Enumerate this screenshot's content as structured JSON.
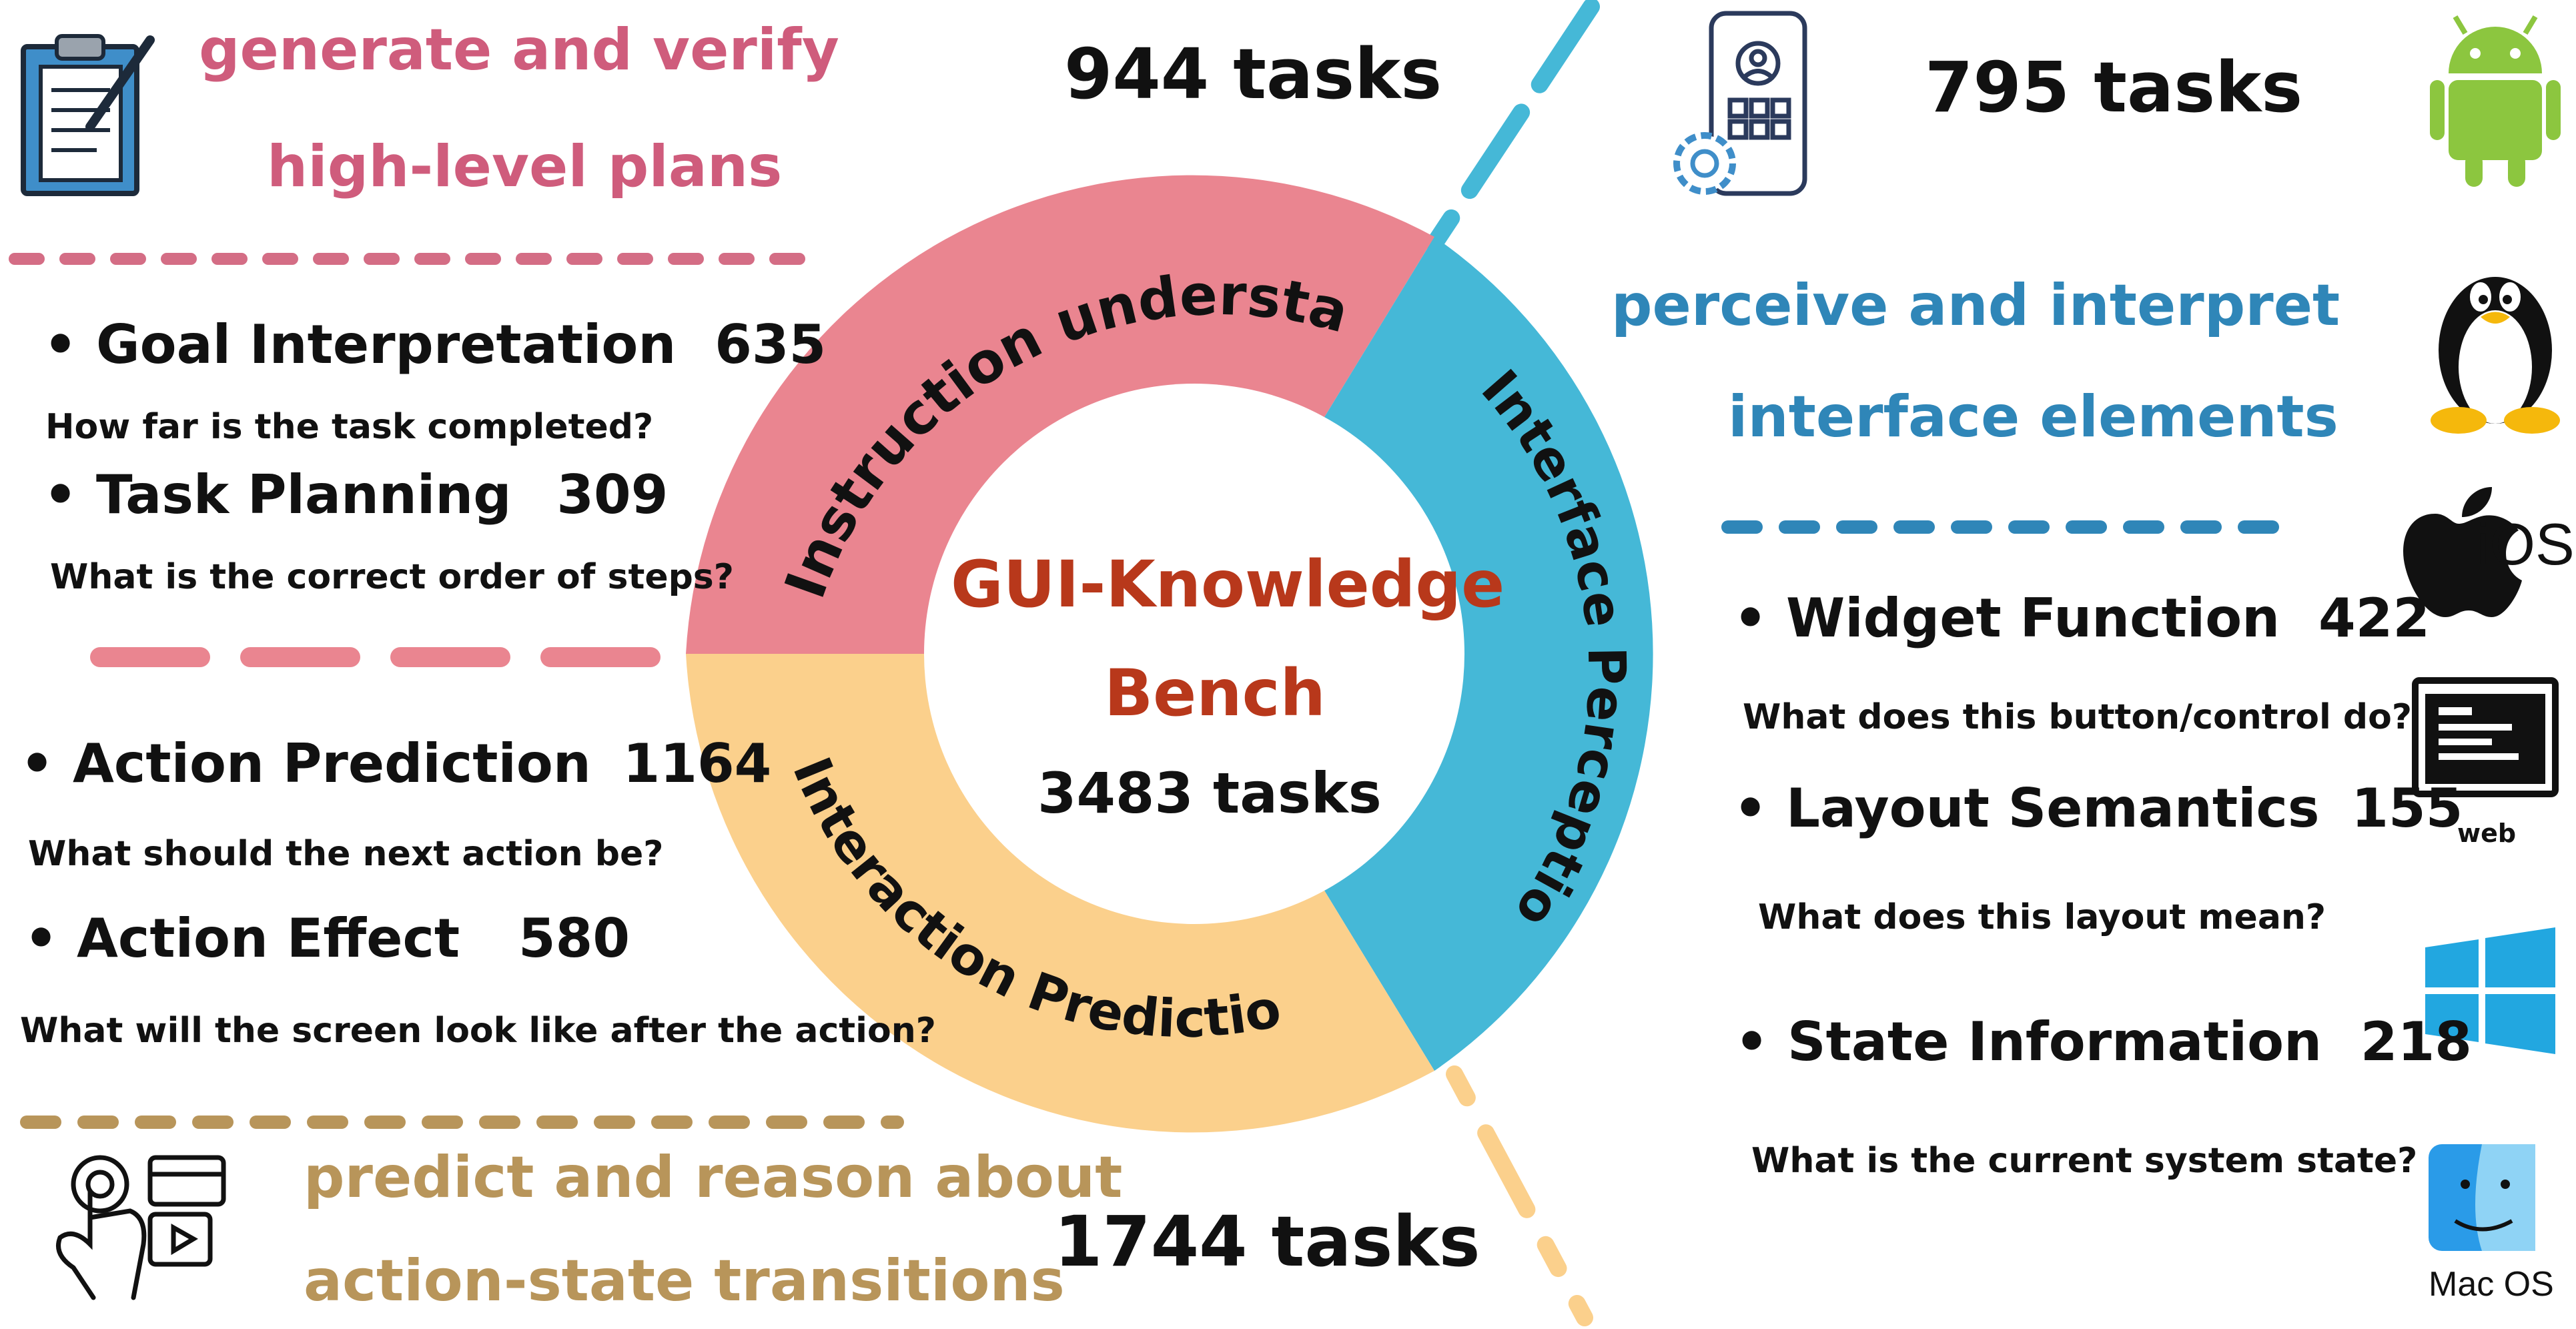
{
  "colors": {
    "instruction": "#ea8590",
    "perception": "#45b8d7",
    "prediction": "#fbd08c",
    "center_title": "#b8381b",
    "slogan_instruction": "#cf5c7c",
    "slogan_perception": "#2f86b8",
    "slogan_prediction": "#b8955a",
    "dash_instruction": "#d46d85",
    "dash_perception": "#2f86b8",
    "dash_prediction": "#b8955a"
  },
  "center": {
    "title_line1": "GUI-Knowledge",
    "title_line2": "Bench",
    "total": "3483 tasks"
  },
  "segments": {
    "instruction": "Instruction understanding",
    "perception": "Interface Perception",
    "prediction": "Interaction Prediction"
  },
  "instruction_section": {
    "count": "944 tasks",
    "slogan_line1": "generate and verify",
    "slogan_line2": "high-level plans",
    "items": [
      {
        "bullet": "•",
        "label": "Goal Interpretation",
        "count": "635",
        "question": "How far is the task completed?"
      },
      {
        "bullet": "•",
        "label": "Task Planning",
        "count": "309",
        "question": "What is the correct order of steps?"
      }
    ]
  },
  "prediction_section": {
    "count": "1744 tasks",
    "slogan_line1": "predict and reason about",
    "slogan_line2": "action-state transitions",
    "items": [
      {
        "bullet": "•",
        "label": "Action Prediction",
        "count": "1164",
        "question": "What should the next action be?"
      },
      {
        "bullet": "•",
        "label": "Action Effect",
        "count": "580",
        "question": "What will the screen look like after the action?"
      }
    ]
  },
  "perception_section": {
    "count": "795 tasks",
    "slogan_line1": "perceive and interpret",
    "slogan_line2": "interface elements",
    "items": [
      {
        "bullet": "•",
        "label": "Widget Function",
        "count": "422",
        "question": "What does this button/control do?"
      },
      {
        "bullet": "•",
        "label": "Layout Semantics",
        "count": "155",
        "question": "What does this layout mean?"
      },
      {
        "bullet": "•",
        "label": "State Information",
        "count": "218",
        "question": "What is the current system state?"
      }
    ]
  },
  "platforms": {
    "ios": "iOS",
    "web": "web",
    "macos": "Mac OS"
  },
  "icons": [
    "clipboard-icon",
    "phone-settings-icon",
    "touch-gesture-icon",
    "android-icon",
    "linux-icon",
    "apple-icon",
    "web-window-icon",
    "windows-icon",
    "finder-icon"
  ]
}
